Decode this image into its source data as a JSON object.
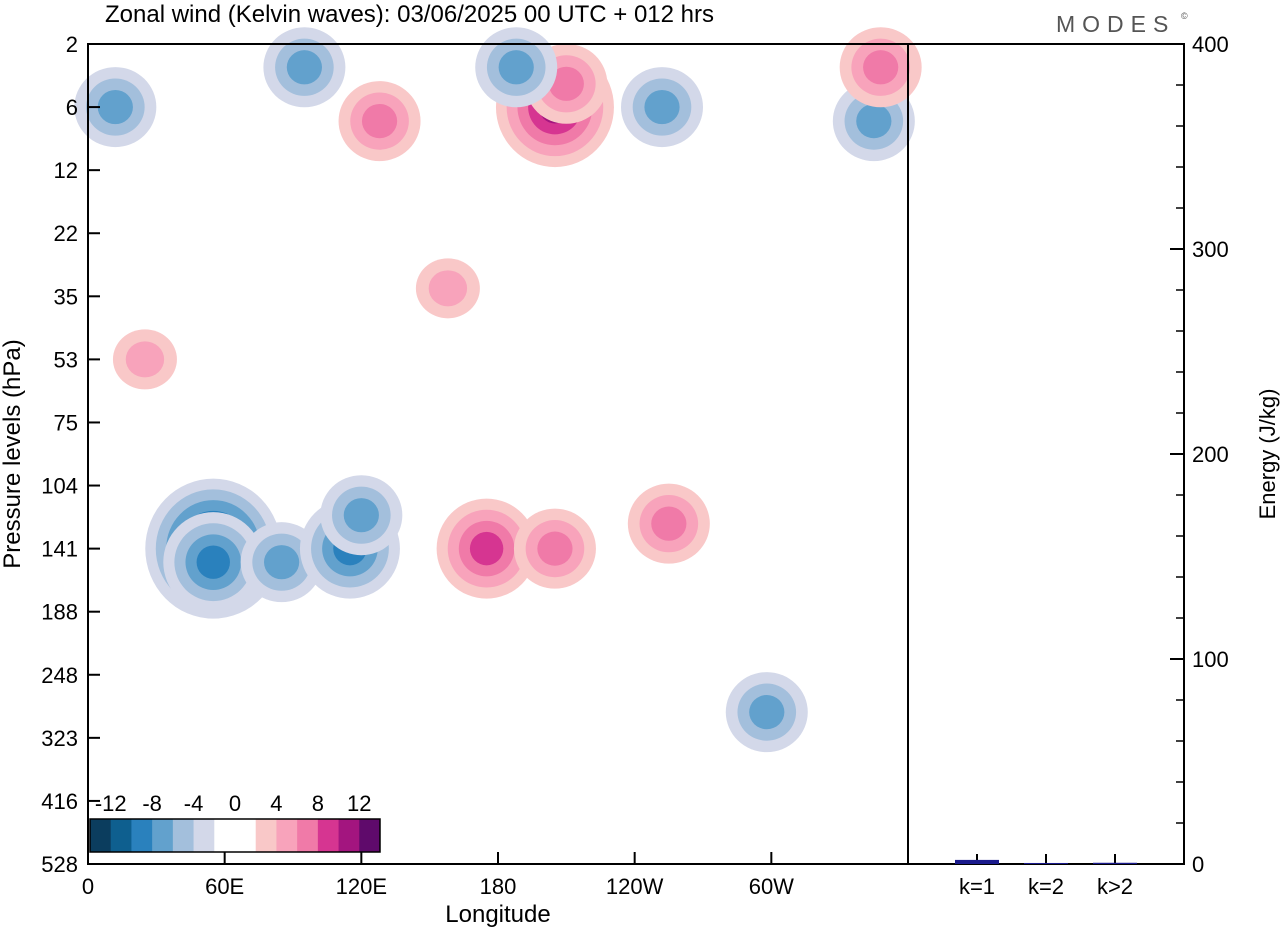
{
  "title": "Zonal wind (Kelvin waves):  03/06/2025  00 UTC  + 012 hrs",
  "brand": "MODES",
  "brand_mark": "©",
  "chart_data": [
    {
      "type": "heatmap",
      "title": "Zonal wind (Kelvin waves):  03/06/2025  00 UTC  + 012 hrs",
      "xlabel": "Longitude",
      "ylabel": "Pressure levels (hPa)",
      "x_ticks": [
        "0",
        "60E",
        "120E",
        "180",
        "120W",
        "60W"
      ],
      "y_ticks": [
        "2",
        "6",
        "12",
        "22",
        "35",
        "53",
        "75",
        "104",
        "141",
        "188",
        "248",
        "323",
        "416",
        "528"
      ],
      "colorbar": {
        "labels": [
          "-12",
          "-8",
          "-4",
          "0",
          "4",
          "8",
          "12"
        ],
        "colors": [
          "#0b3d5e",
          "#0e5f8f",
          "#2a81bd",
          "#62a1cd",
          "#a3bfdc",
          "#d3d8e9",
          "#ffffff",
          "#ffffff",
          "#f9c8c8",
          "#f8a3bb",
          "#f07aa8",
          "#d63591",
          "#a3157f",
          "#5f0a6b"
        ]
      },
      "blobs": [
        {
          "x": 55,
          "p": 141,
          "v": -12
        },
        {
          "x": 55,
          "p": 150,
          "v": -8
        },
        {
          "x": 85,
          "p": 150,
          "v": -6
        },
        {
          "x": 115,
          "p": 141,
          "v": -8
        },
        {
          "x": 120,
          "p": 120,
          "v": -6
        },
        {
          "x": 175,
          "p": 141,
          "v": 8
        },
        {
          "x": 205,
          "p": 141,
          "v": 6
        },
        {
          "x": 255,
          "p": 125,
          "v": 6
        },
        {
          "x": 298,
          "p": 290,
          "v": -5
        },
        {
          "x": 205,
          "p": 6,
          "v": 9
        },
        {
          "x": 210,
          "p": 4,
          "v": 5
        },
        {
          "x": 188,
          "p": 3,
          "v": -6
        },
        {
          "x": 128,
          "p": 7,
          "v": 6
        },
        {
          "x": 252,
          "p": 6,
          "v": -6
        },
        {
          "x": 345,
          "p": 7,
          "v": -6
        },
        {
          "x": 348,
          "p": 3,
          "v": 6
        },
        {
          "x": 95,
          "p": 3,
          "v": -5
        },
        {
          "x": 12,
          "p": 6,
          "v": -5
        },
        {
          "x": 158,
          "p": 33,
          "v": 3
        },
        {
          "x": 25,
          "p": 53,
          "v": 3
        }
      ]
    },
    {
      "type": "bar",
      "categories": [
        "k=1",
        "k=2",
        "k>2"
      ],
      "values": [
        2,
        0.5,
        0.6
      ],
      "ylabel": "Energy (J/kg)",
      "ylim": [
        0,
        400
      ],
      "y_ticks": [
        "0",
        "100",
        "200",
        "300",
        "400"
      ],
      "bar_color": "#1a1a8c"
    }
  ]
}
